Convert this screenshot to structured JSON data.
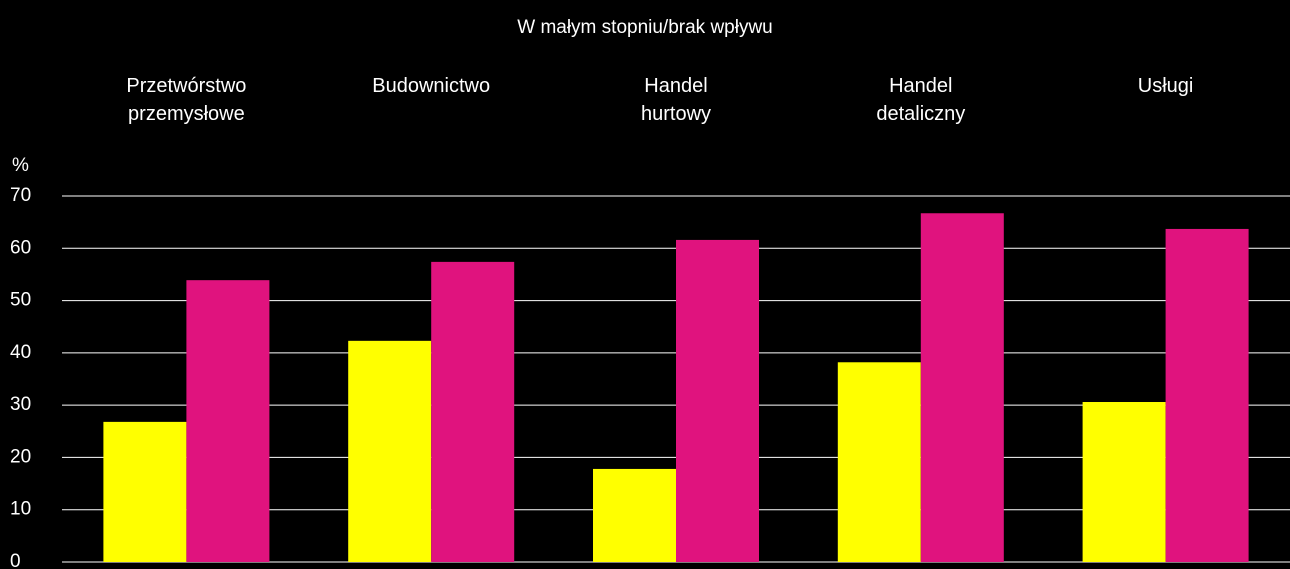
{
  "chart_data": {
    "type": "bar",
    "title": "W małym stopniu/brak wpływu",
    "y_label": "%",
    "categories": [
      "Przetwórstwo\nprzemysłowe",
      "Budownictwo",
      "Handel\nhurtowy",
      "Handel\ndetaliczny",
      "Usługi"
    ],
    "series": [
      {
        "color": "#ffff00",
        "values": [
          26.8,
          42.3,
          17.8,
          38.2,
          30.6
        ]
      },
      {
        "color": "#e0137e",
        "values": [
          53.9,
          57.4,
          61.6,
          66.7,
          63.7
        ]
      }
    ],
    "ylim": [
      0,
      70
    ],
    "yticks": [
      0,
      10,
      20,
      30,
      40,
      50,
      60,
      70
    ],
    "grid": true
  }
}
